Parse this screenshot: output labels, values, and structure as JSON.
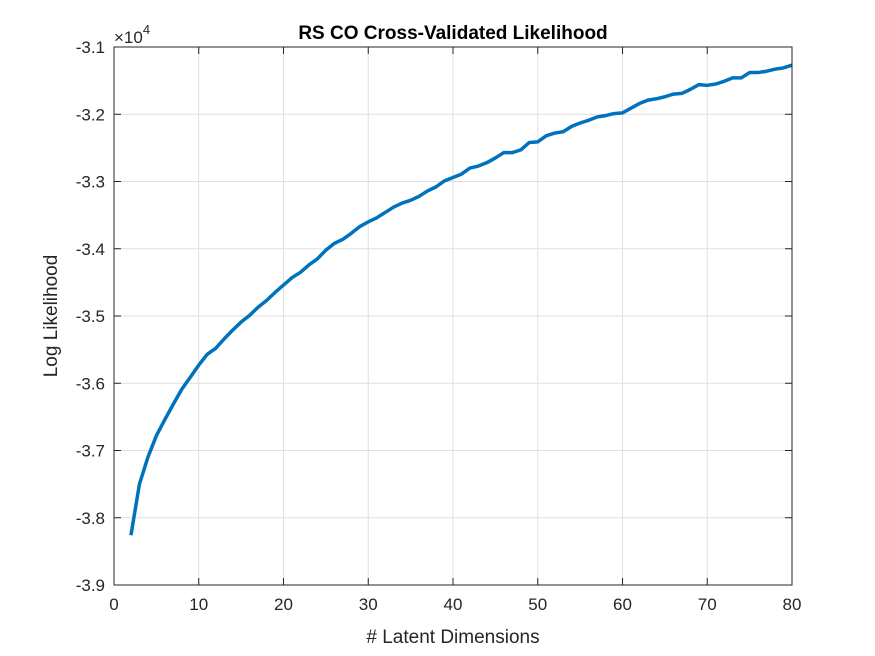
{
  "chart_data": {
    "type": "line",
    "title": "RS CO Cross-Validated Likelihood",
    "xlabel": "# Latent Dimensions",
    "ylabel": "Log Likelihood",
    "xlim": [
      0,
      80
    ],
    "ylim": [
      -3.9,
      -3.1
    ],
    "y_exponent_base": "×10",
    "y_exponent_power": "4",
    "xticks": [
      0,
      10,
      20,
      30,
      40,
      50,
      60,
      70,
      80
    ],
    "xtick_labels": [
      "0",
      "10",
      "20",
      "30",
      "40",
      "50",
      "60",
      "70",
      "80"
    ],
    "yticks": [
      -3.9,
      -3.8,
      -3.7,
      -3.6,
      -3.5,
      -3.4,
      -3.3,
      -3.2,
      -3.1
    ],
    "ytick_labels": [
      "-3.9",
      "-3.8",
      "-3.7",
      "-3.6",
      "-3.5",
      "-3.4",
      "-3.3",
      "-3.2",
      "-3.1"
    ],
    "grid": true,
    "line_color": "#0072BD",
    "series": [
      {
        "x": [
          2,
          3,
          4,
          5,
          6,
          7,
          8,
          9,
          10,
          11,
          12,
          13,
          14,
          15,
          16,
          17,
          18,
          19,
          20,
          21,
          22,
          23,
          24,
          25,
          26,
          27,
          28,
          29,
          30,
          31,
          32,
          33,
          34,
          35,
          36,
          37,
          38,
          39,
          40,
          41,
          42,
          43,
          44,
          45,
          46,
          47,
          48,
          49,
          50,
          51,
          52,
          53,
          54,
          55,
          56,
          57,
          58,
          59,
          60,
          61,
          62,
          63,
          64,
          65,
          66,
          67,
          68,
          69,
          70,
          71,
          72,
          73,
          74,
          75,
          76,
          77,
          78,
          79,
          80
        ],
        "values": [
          -3.826,
          -3.75,
          -3.71,
          -3.678,
          -3.654,
          -3.631,
          -3.609,
          -3.591,
          -3.573,
          -3.557,
          -3.548,
          -3.534,
          -3.521,
          -3.509,
          -3.499,
          -3.487,
          -3.477,
          -3.465,
          -3.454,
          -3.443,
          -3.435,
          -3.424,
          -3.415,
          -3.402,
          -3.392,
          -3.386,
          -3.377,
          -3.367,
          -3.36,
          -3.354,
          -3.346,
          -3.338,
          -3.332,
          -3.328,
          -3.322,
          -3.314,
          -3.308,
          -3.299,
          -3.294,
          -3.289,
          -3.28,
          -3.277,
          -3.272,
          -3.265,
          -3.257,
          -3.257,
          -3.253,
          -3.242,
          -3.241,
          -3.232,
          -3.228,
          -3.226,
          -3.218,
          -3.213,
          -3.209,
          -3.204,
          -3.202,
          -3.199,
          -3.198,
          -3.191,
          -3.184,
          -3.179,
          -3.177,
          -3.174,
          -3.17,
          -3.169,
          -3.163,
          -3.156,
          -3.157,
          -3.155,
          -3.151,
          -3.146,
          -3.146,
          -3.138,
          -3.138,
          -3.136,
          -3.133,
          -3.131,
          -3.127
        ]
      }
    ]
  }
}
